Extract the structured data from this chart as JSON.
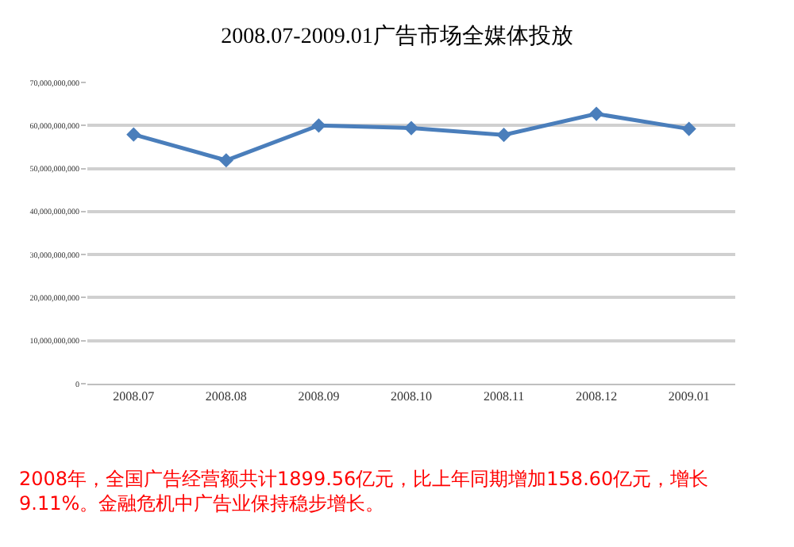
{
  "chart_data": {
    "type": "line",
    "title": "2008.07-2009.01广告市场全媒体投放",
    "categories": [
      "2008.07",
      "2008.08",
      "2008.09",
      "2008.10",
      "2008.11",
      "2008.12",
      "2009.01"
    ],
    "series": [
      {
        "color": "#4a7ebb",
        "values": [
          57900000000,
          51900000000,
          60000000000,
          59400000000,
          57800000000,
          62700000000,
          59200000000
        ]
      }
    ],
    "ylim": [
      0,
      70000000000
    ],
    "yticks": [
      {
        "value": 0,
        "label": "0"
      },
      {
        "value": 10000000000,
        "label": "10,000,000,000"
      },
      {
        "value": 20000000000,
        "label": "20,000,000,000"
      },
      {
        "value": 30000000000,
        "label": "30,000,000,000"
      },
      {
        "value": 40000000000,
        "label": "40,000,000,000"
      },
      {
        "value": 50000000000,
        "label": "50,000,000,000"
      },
      {
        "value": 60000000000,
        "label": "60,000,000,000"
      },
      {
        "value": 70000000000,
        "label": "70,000,000,000"
      }
    ],
    "grid": "y",
    "marker": "diamond",
    "line_style": "solid",
    "annotations": [
      "2008年，全国广告经营额共计1899.56亿元，比上年同期增加158.60亿元，增长\n9.11%。金融危机中广告业保持稳步增长。"
    ]
  }
}
